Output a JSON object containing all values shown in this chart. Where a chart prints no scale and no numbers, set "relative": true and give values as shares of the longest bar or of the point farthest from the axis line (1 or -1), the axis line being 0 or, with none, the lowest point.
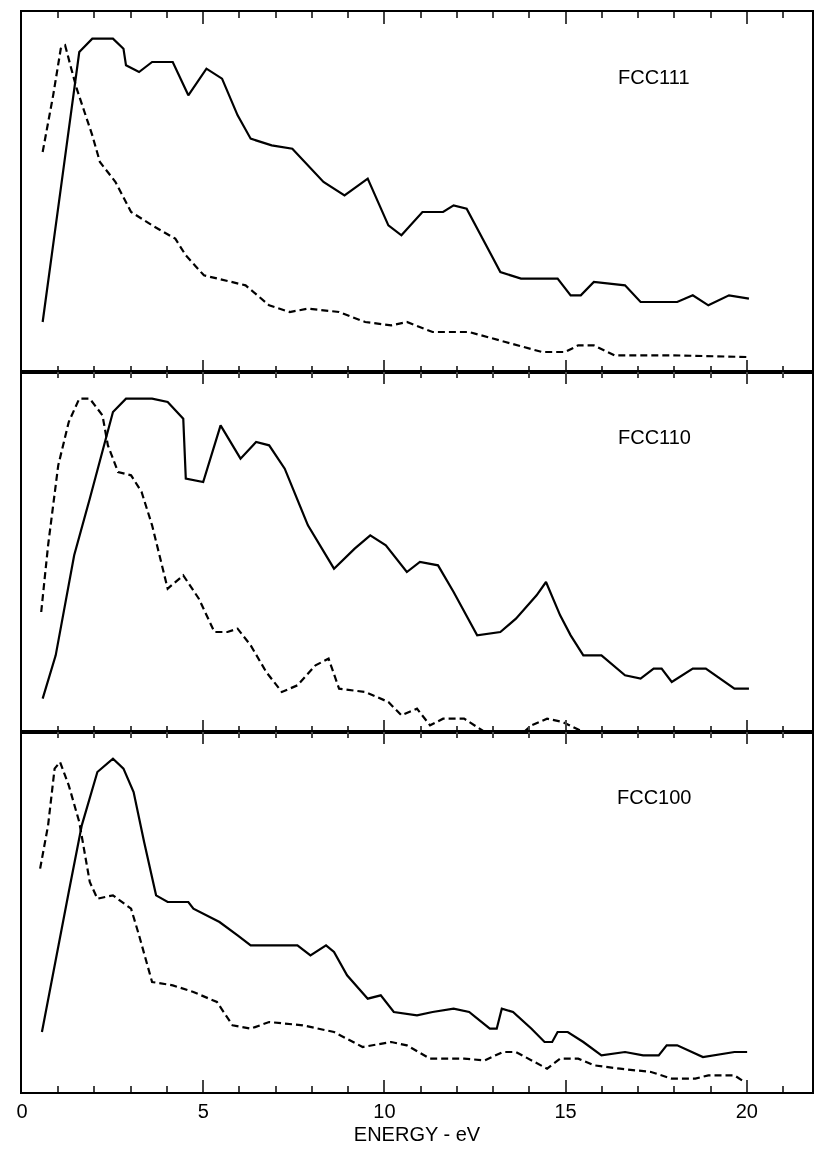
{
  "chart_data": [
    {
      "type": "line",
      "relative": true,
      "xlim": [
        0,
        21.8
      ],
      "xticks": [
        0,
        5,
        10,
        15,
        20
      ],
      "tick_labels": false,
      "annotations": [
        "FCC111"
      ],
      "series": [
        {
          "color": "#000000",
          "line_style": "solid",
          "x": [
            0.57,
            1.07,
            1.58,
            1.94,
            2.51,
            2.8,
            2.87,
            3.23,
            3.59,
            4.16,
            4.59,
            5.09,
            5.52,
            5.95,
            6.31,
            6.89,
            7.46,
            8.32,
            8.9,
            9.54,
            10.11,
            10.47,
            11.05,
            11.62,
            11.91,
            12.27,
            13.2,
            13.77,
            14.78,
            15.14,
            15.42,
            15.78,
            16.64,
            17.07,
            18.08,
            18.51,
            18.94,
            19.51,
            20.06
          ],
          "values": [
            0.15,
            0.55,
            0.96,
            1.0,
            1.0,
            0.97,
            0.92,
            0.9,
            0.93,
            0.93,
            0.83,
            0.91,
            0.88,
            0.77,
            0.7,
            0.68,
            0.67,
            0.57,
            0.53,
            0.58,
            0.44,
            0.41,
            0.48,
            0.48,
            0.5,
            0.49,
            0.3,
            0.28,
            0.28,
            0.23,
            0.23,
            0.27,
            0.26,
            0.21,
            0.21,
            0.23,
            0.2,
            0.23,
            0.22
          ]
        },
        {
          "color": "#000000",
          "line_style": "dashed",
          "x": [
            0.57,
            0.86,
            1.07,
            1.19,
            1.36,
            1.51,
            1.94,
            2.15,
            2.58,
            3.01,
            3.59,
            4.23,
            4.52,
            5.02,
            6.17,
            6.82,
            7.39,
            7.89,
            8.75,
            9.47,
            10.19,
            10.62,
            11.33,
            12.34,
            13.34,
            14.35,
            14.99,
            15.35,
            15.78,
            16.35,
            17.93,
            20.01
          ],
          "values": [
            0.66,
            0.83,
            0.97,
            0.98,
            0.91,
            0.85,
            0.71,
            0.63,
            0.57,
            0.48,
            0.44,
            0.4,
            0.35,
            0.29,
            0.26,
            0.2,
            0.18,
            0.19,
            0.18,
            0.15,
            0.14,
            0.15,
            0.12,
            0.12,
            0.09,
            0.06,
            0.06,
            0.08,
            0.08,
            0.05,
            0.05,
            0.045
          ]
        }
      ]
    },
    {
      "type": "line",
      "relative": true,
      "xlim": [
        0,
        21.8
      ],
      "xticks": [
        0,
        5,
        10,
        15,
        20
      ],
      "tick_labels": false,
      "annotations": [
        "FCC110"
      ],
      "series": [
        {
          "color": "#000000",
          "line_style": "solid",
          "x": [
            0.57,
            0.93,
            1.44,
            1.87,
            2.51,
            2.87,
            3.59,
            4.02,
            4.45,
            4.52,
            5.0,
            5.48,
            6.03,
            6.46,
            6.82,
            7.25,
            7.89,
            8.61,
            9.18,
            9.61,
            10.04,
            10.62,
            10.98,
            11.48,
            11.91,
            12.56,
            13.2,
            13.63,
            14.2,
            14.46,
            14.85,
            15.14,
            15.49,
            15.99,
            16.64,
            17.07,
            17.43,
            17.65,
            17.93,
            18.51,
            18.87,
            19.66,
            20.06
          ],
          "values": [
            0.1,
            0.23,
            0.53,
            0.7,
            0.96,
            1.0,
            1.0,
            0.99,
            0.94,
            0.76,
            0.75,
            0.92,
            0.82,
            0.87,
            0.86,
            0.79,
            0.62,
            0.49,
            0.55,
            0.59,
            0.56,
            0.48,
            0.51,
            0.5,
            0.42,
            0.29,
            0.3,
            0.34,
            0.41,
            0.45,
            0.35,
            0.29,
            0.23,
            0.23,
            0.17,
            0.16,
            0.19,
            0.19,
            0.15,
            0.19,
            0.19,
            0.13,
            0.13
          ]
        },
        {
          "color": "#000000",
          "line_style": "dashed",
          "x": [
            0.53,
            0.72,
            1.0,
            1.29,
            1.58,
            1.87,
            2.22,
            2.37,
            2.65,
            3.01,
            3.3,
            3.59,
            4.02,
            4.45,
            4.88,
            5.31,
            5.67,
            5.95,
            6.31,
            6.74,
            7.17,
            7.6,
            8.1,
            8.46,
            8.75,
            9.47,
            10.11,
            10.47,
            10.9,
            11.26,
            11.62,
            12.2,
            12.77,
            13.3,
            13.85,
            14.06,
            14.49,
            14.92,
            15.49
          ],
          "values": [
            0.36,
            0.56,
            0.8,
            0.93,
            1.0,
            1.0,
            0.95,
            0.86,
            0.78,
            0.77,
            0.72,
            0.62,
            0.43,
            0.47,
            0.4,
            0.3,
            0.3,
            0.31,
            0.26,
            0.18,
            0.12,
            0.14,
            0.2,
            0.22,
            0.13,
            0.12,
            0.09,
            0.05,
            0.07,
            0.02,
            0.04,
            0.04,
            0.0,
            null,
            0.0,
            0.02,
            0.04,
            0.03,
            0.0
          ]
        }
      ]
    },
    {
      "type": "line",
      "relative": true,
      "xlim": [
        0,
        21.8
      ],
      "xticks": [
        0,
        5,
        10,
        15,
        20
      ],
      "tick_labels": "x",
      "xlabel": "ENERGY - eV",
      "annotations": [
        "FCC100"
      ],
      "series": [
        {
          "color": "#000000",
          "line_style": "solid",
          "x": [
            0.55,
            1.29,
            1.65,
            2.08,
            2.51,
            2.8,
            3.08,
            3.37,
            3.7,
            4.02,
            4.59,
            4.73,
            5.45,
            5.95,
            6.31,
            7.6,
            7.96,
            8.39,
            8.61,
            8.97,
            9.54,
            9.9,
            10.26,
            10.9,
            11.33,
            11.91,
            12.34,
            12.91,
            13.1,
            13.24,
            13.55,
            14.06,
            14.42,
            14.63,
            14.78,
            15.06,
            15.49,
            15.99,
            16.64,
            17.14,
            17.57,
            17.79,
            18.08,
            18.79,
            19.66,
            20.01
          ],
          "values": [
            0.18,
            0.6,
            0.8,
            0.96,
            1.0,
            0.97,
            0.9,
            0.75,
            0.59,
            0.57,
            0.57,
            0.55,
            0.51,
            0.47,
            0.44,
            0.44,
            0.41,
            0.44,
            0.42,
            0.35,
            0.28,
            0.29,
            0.24,
            0.23,
            0.24,
            0.25,
            0.24,
            0.19,
            0.19,
            0.25,
            0.24,
            0.19,
            0.15,
            0.15,
            0.18,
            0.18,
            0.15,
            0.11,
            0.12,
            0.11,
            0.11,
            0.14,
            0.14,
            0.105,
            0.12,
            0.12
          ]
        },
        {
          "color": "#000000",
          "line_style": "dashed",
          "x": [
            0.5,
            0.72,
            0.9,
            1.05,
            1.29,
            1.58,
            1.87,
            2.08,
            2.51,
            3.01,
            3.23,
            3.59,
            4.16,
            4.73,
            5.38,
            5.81,
            6.31,
            6.82,
            7.75,
            8.61,
            9.4,
            10.19,
            10.62,
            11.26,
            12.2,
            12.77,
            13.27,
            13.63,
            14.49,
            14.85,
            15.35,
            15.78,
            16.5,
            17.36,
            17.93,
            18.58,
            18.94,
            19.66,
            19.94
          ],
          "values": [
            0.67,
            0.8,
            0.97,
            0.99,
            0.92,
            0.81,
            0.63,
            0.58,
            0.59,
            0.55,
            0.47,
            0.33,
            0.32,
            0.3,
            0.27,
            0.2,
            0.19,
            0.21,
            0.2,
            0.18,
            0.135,
            0.15,
            0.14,
            0.1,
            0.1,
            0.095,
            0.12,
            0.12,
            0.07,
            0.1,
            0.1,
            0.08,
            0.07,
            0.06,
            0.04,
            0.04,
            0.05,
            0.05,
            0.03
          ]
        }
      ]
    }
  ]
}
